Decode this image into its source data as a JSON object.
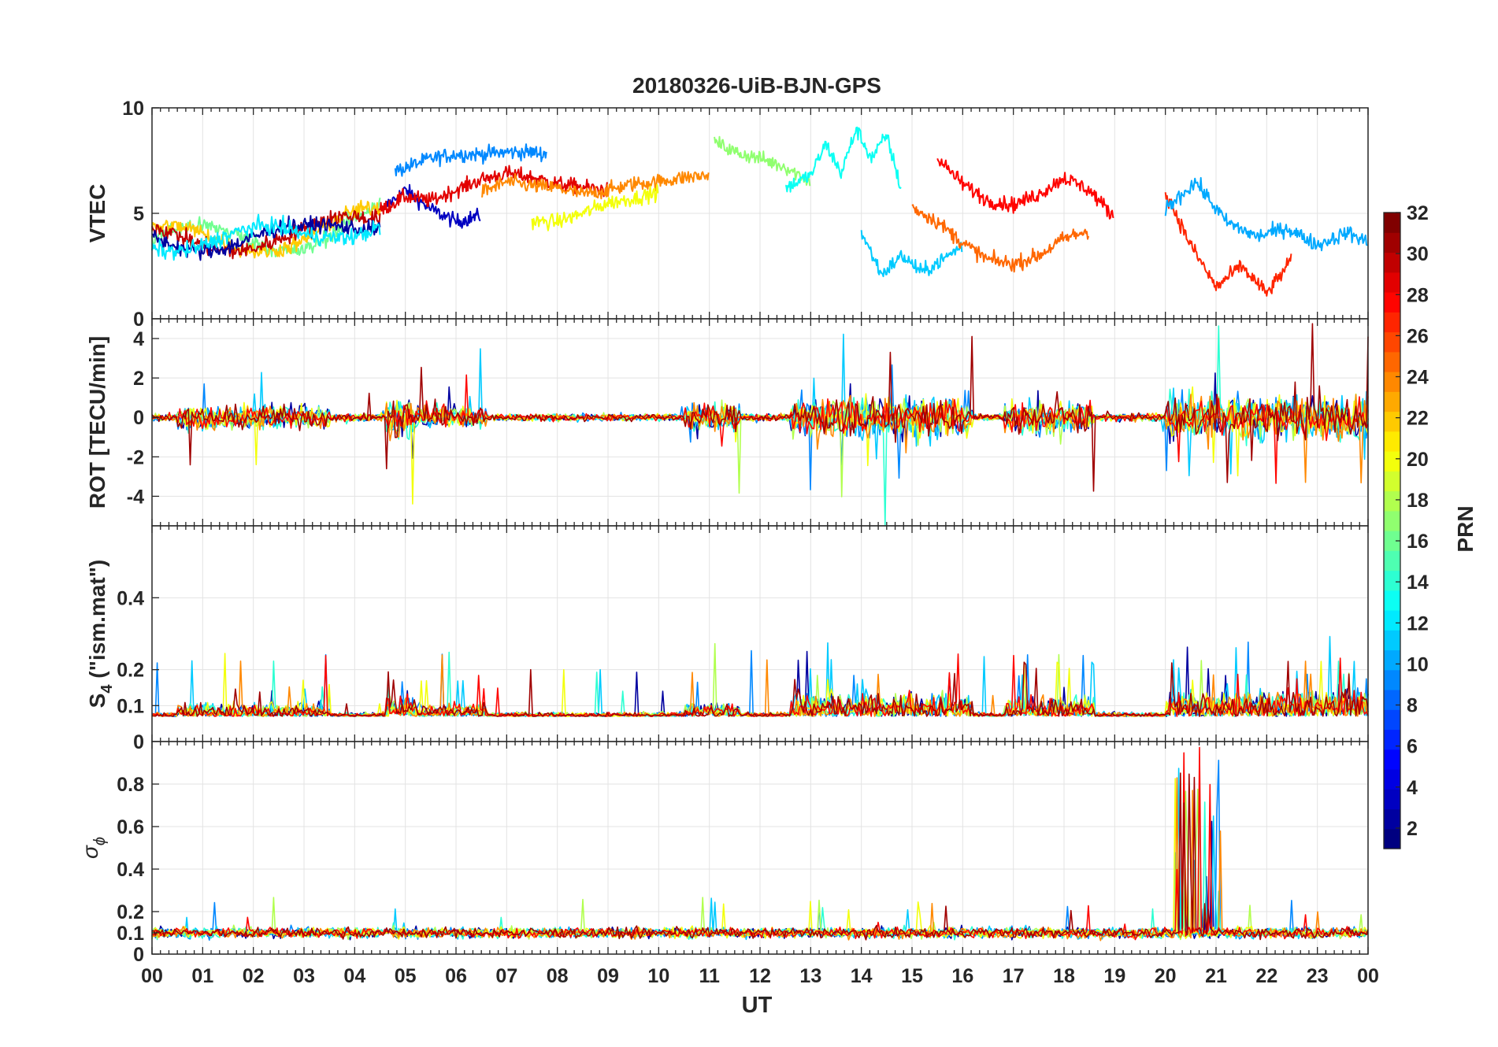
{
  "chart_data": {
    "type": "line",
    "title": "20180326-UiB-BJN-GPS",
    "xlabel": "UT",
    "x_ticks": [
      "00",
      "01",
      "02",
      "03",
      "04",
      "05",
      "06",
      "07",
      "08",
      "09",
      "10",
      "11",
      "12",
      "13",
      "14",
      "15",
      "16",
      "17",
      "18",
      "19",
      "20",
      "21",
      "22",
      "23",
      "00"
    ],
    "xlim": [
      0,
      24
    ],
    "panels": [
      {
        "name": "vtec",
        "ylabel": "VTEC",
        "ylim": [
          0,
          10
        ],
        "yticks": [
          0,
          5,
          10
        ],
        "ytick_labels": [
          "0",
          "5",
          "10"
        ],
        "series": [
          {
            "prn": 3,
            "x": [
              4.6,
              5.0,
              5.5,
              6.0,
              6.5
            ],
            "values": [
              5.3,
              6.1,
              5.2,
              4.6,
              4.9
            ]
          },
          {
            "prn": 9,
            "x": [
              4.8,
              5.5,
              6.0,
              6.5,
              7.0,
              7.5,
              7.8
            ],
            "values": [
              7.0,
              7.6,
              7.8,
              7.8,
              7.9,
              7.9,
              7.8
            ]
          },
          {
            "prn": 29,
            "x": [
              4.4,
              5.0,
              5.5,
              6.0,
              6.5,
              7.0,
              7.5,
              8.0,
              9.0
            ],
            "values": [
              5.0,
              5.8,
              5.6,
              6.1,
              6.6,
              6.9,
              6.7,
              6.4,
              6.1
            ]
          },
          {
            "prn": 24,
            "x": [
              6.5,
              7.0,
              7.5,
              8.0,
              8.5,
              9.0,
              9.5,
              10.0,
              10.5,
              11.0
            ],
            "values": [
              6.0,
              6.5,
              6.3,
              6.2,
              5.9,
              6.1,
              6.4,
              6.5,
              6.7,
              6.8
            ]
          },
          {
            "prn": 20,
            "x": [
              7.5,
              8.0,
              8.5,
              9.0,
              9.5,
              10.0
            ],
            "values": [
              4.6,
              4.6,
              5.0,
              5.5,
              5.7,
              6.0
            ]
          },
          {
            "prn": 17,
            "x": [
              11.1,
              11.5,
              12.0,
              12.5,
              13.0
            ],
            "values": [
              8.4,
              7.9,
              7.6,
              7.2,
              6.5
            ]
          },
          {
            "prn": 13,
            "x": [
              12.5,
              13.0,
              13.3,
              13.6,
              13.9,
              14.2,
              14.5,
              14.8
            ],
            "values": [
              6.2,
              6.8,
              8.3,
              6.9,
              9.0,
              7.6,
              8.7,
              6.0
            ]
          },
          {
            "prn": 11,
            "x": [
              14.0,
              14.4,
              14.8,
              15.2,
              15.6,
              16.0
            ],
            "values": [
              4.1,
              2.1,
              3.0,
              2.2,
              2.8,
              3.5
            ]
          },
          {
            "prn": 25,
            "x": [
              15.0,
              15.5,
              16.0,
              16.5,
              17.0,
              17.5,
              18.0,
              18.5
            ],
            "values": [
              5.3,
              4.6,
              3.6,
              2.8,
              2.6,
              3.0,
              3.8,
              4.2
            ]
          },
          {
            "prn": 28,
            "x": [
              15.5,
              16.0,
              16.5,
              17.0,
              17.5,
              18.0,
              18.5,
              19.0
            ],
            "values": [
              7.6,
              6.4,
              5.6,
              5.4,
              5.9,
              6.7,
              6.1,
              4.8
            ]
          },
          {
            "prn": 27,
            "x": [
              20.0,
              20.5,
              21.0,
              21.5,
              22.0,
              22.5
            ],
            "values": [
              6.0,
              3.5,
              1.5,
              2.5,
              1.2,
              2.8
            ]
          },
          {
            "prn": 10,
            "x": [
              20.0,
              20.6,
              21.2,
              21.8,
              22.4,
              23.0,
              23.6,
              24.0
            ],
            "values": [
              5.2,
              6.5,
              4.6,
              3.9,
              4.3,
              3.5,
              4.1,
              3.6
            ]
          }
        ]
      },
      {
        "name": "rot",
        "ylabel": "ROT [TECU/min]",
        "ylim": [
          -5.5,
          5
        ],
        "yticks": [
          -4,
          -2,
          0,
          2,
          4
        ],
        "ytick_labels": [
          "-4",
          "-2",
          "0",
          "2",
          "4"
        ]
      },
      {
        "name": "s4",
        "ylabel_main": "S",
        "ylabel_sub": "4",
        "ylabel_rest": " (\"ism.mat\")",
        "ylim": [
          0,
          0.6
        ],
        "yticks": [
          0,
          0.1,
          0.2,
          0.4
        ],
        "ytick_labels": [
          "0",
          "0.1",
          "0.2",
          "0.4"
        ]
      },
      {
        "name": "sigma_phi",
        "ylabel_main": "σ",
        "ylabel_sub": "ϕ",
        "ylim": [
          0,
          1
        ],
        "yticks": [
          0,
          0.1,
          0.2,
          0.4,
          0.6,
          0.8
        ],
        "ytick_labels": [
          "0",
          "0.1",
          "0.2",
          "0.4",
          "0.6",
          "0.8"
        ]
      }
    ],
    "colorbar": {
      "label": "PRN",
      "range": [
        1,
        32
      ],
      "ticks": [
        2,
        4,
        6,
        8,
        10,
        12,
        14,
        16,
        18,
        20,
        22,
        24,
        26,
        28,
        30,
        32
      ],
      "tick_labels": [
        "2",
        "4",
        "6",
        "8",
        "10",
        "12",
        "14",
        "16",
        "18",
        "20",
        "22",
        "24",
        "26",
        "28",
        "30",
        "32"
      ],
      "colormap": "jet",
      "levels": 32
    },
    "grid": true
  }
}
